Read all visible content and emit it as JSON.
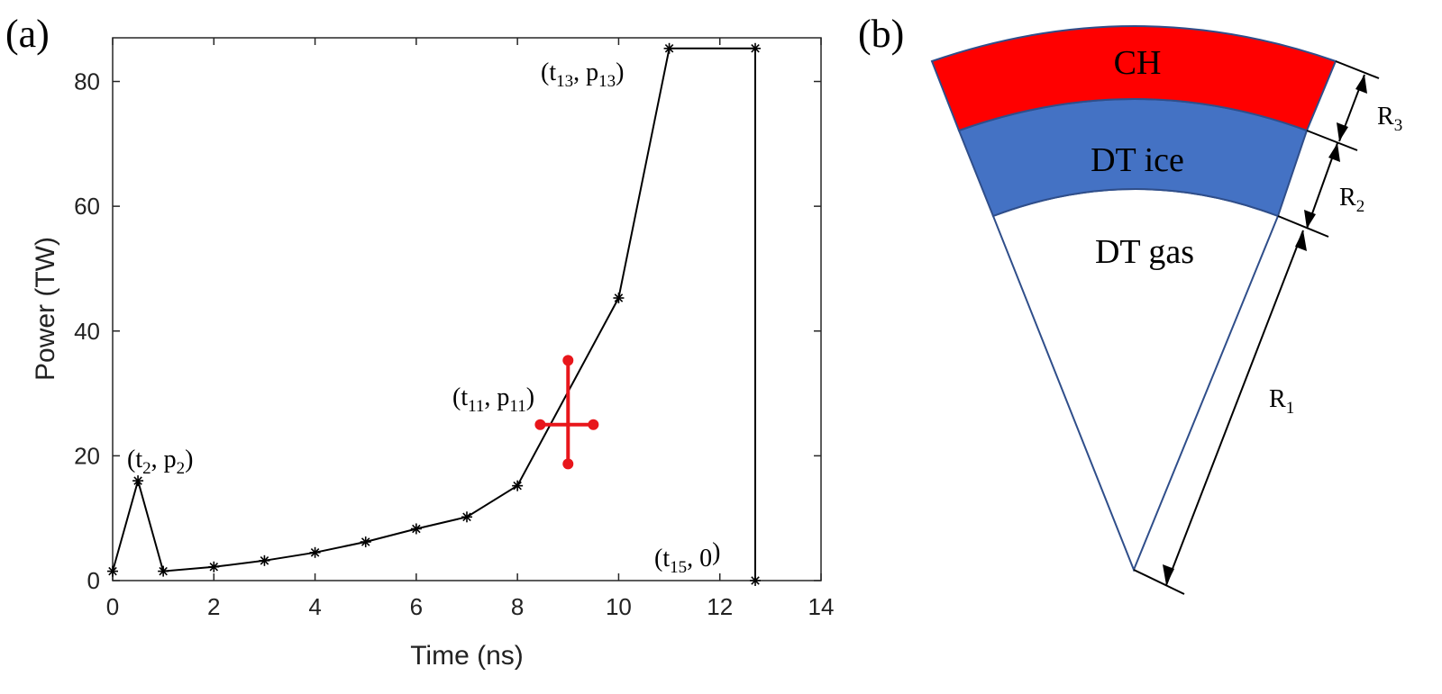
{
  "colors": {
    "line": "#000000",
    "uncertainty_marker": "#e8161b",
    "ch_layer": "#ff0000",
    "dt_ice_layer": "#4472c4",
    "outline": "#2f4e8a"
  },
  "panel_a": {
    "label": "(a)",
    "annotations": [
      {
        "main": "(t",
        "sub": "2",
        "mid": ", p",
        "sub2": "2",
        "end": ")"
      },
      {
        "main": "(t",
        "sub": "11",
        "mid": ", p",
        "sub2": "11",
        "end": ")"
      },
      {
        "main": "(t",
        "sub": "13",
        "mid": ", p",
        "sub2": "13",
        "end": ")"
      },
      {
        "main": "(t",
        "sub": "15",
        "mid": ", 0",
        "sub2": "",
        "end": ")"
      }
    ]
  },
  "panel_b": {
    "label": "(b)",
    "layers": [
      "CH",
      "DT ice",
      "DT gas"
    ],
    "dimensions": [
      {
        "main": "R",
        "sub": "1"
      },
      {
        "main": "R",
        "sub": "2"
      },
      {
        "main": "R",
        "sub": "3"
      }
    ]
  },
  "chart_data": {
    "type": "line",
    "xlabel": "Time (ns)",
    "ylabel": "Power (TW)",
    "xlim": [
      0,
      14
    ],
    "ylim": [
      0,
      87
    ],
    "xticks": [
      0,
      2,
      4,
      6,
      8,
      10,
      12,
      14
    ],
    "yticks": [
      0,
      20,
      40,
      60,
      80
    ],
    "grid": false,
    "series": [
      {
        "marker": "asterisk",
        "x": [
          0,
          0.5,
          1,
          2,
          3,
          4,
          5,
          6,
          7,
          8,
          10,
          11,
          12.7,
          12.7
        ],
        "y": [
          1.5,
          16,
          1.5,
          2.2,
          3.2,
          4.5,
          6.2,
          8.3,
          10.2,
          15.2,
          45.3,
          85.3,
          85.3,
          0
        ]
      }
    ],
    "highlight_point": {
      "x": 9,
      "y": 25,
      "x_range": [
        8.45,
        9.5
      ],
      "y_range": [
        18.7,
        35.3
      ]
    }
  }
}
